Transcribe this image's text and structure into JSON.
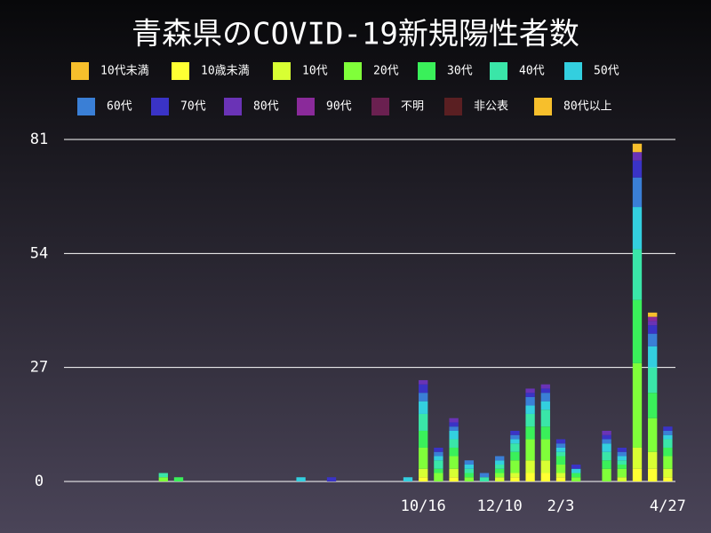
{
  "chart_data": {
    "type": "stacked_bar",
    "title": "青森県のCOVID-19新規陽性者数",
    "categories": [
      null,
      null,
      null,
      null,
      null,
      null,
      null,
      null,
      null,
      null,
      null,
      null,
      null,
      null,
      null,
      null,
      null,
      null,
      null,
      null,
      null,
      null,
      null,
      "10/16",
      null,
      null,
      null,
      null,
      "12/10",
      null,
      null,
      null,
      "2/3",
      null,
      null,
      null,
      null,
      null,
      null,
      "4/27"
    ],
    "ylim": [
      0,
      81
    ],
    "yticks": [
      0,
      27,
      54,
      81
    ],
    "grid": true,
    "series": [
      {
        "name": "10代未満",
        "color": "#f7bf2c",
        "values": [
          0,
          0,
          0,
          0,
          0,
          0,
          0,
          0,
          0,
          0,
          0,
          0,
          0,
          0,
          0,
          0,
          0,
          0,
          0,
          0,
          0,
          0,
          0,
          0,
          0,
          0,
          0,
          0,
          0,
          0,
          0,
          0,
          0,
          0,
          0,
          0,
          0,
          0,
          0,
          0
        ]
      },
      {
        "name": "10歳未満",
        "color": "#ffff33",
        "values": [
          0,
          0,
          0,
          0,
          0,
          0,
          0,
          0,
          0,
          0,
          0,
          0,
          0,
          0,
          0,
          0,
          0,
          0,
          0,
          0,
          0,
          0,
          0,
          1,
          0,
          1,
          0,
          0,
          0,
          1,
          2,
          2,
          1,
          0,
          0,
          0,
          0,
          3,
          3,
          1
        ]
      },
      {
        "name": "10代",
        "color": "#d8ff33",
        "values": [
          0,
          0,
          0,
          0,
          0,
          0,
          0,
          0,
          0,
          0,
          0,
          0,
          0,
          0,
          0,
          0,
          0,
          0,
          0,
          0,
          0,
          0,
          0,
          2,
          0,
          2,
          0,
          0,
          1,
          1,
          3,
          3,
          1,
          0,
          0,
          0,
          1,
          5,
          4,
          2
        ]
      },
      {
        "name": "20代",
        "color": "#80ff3a",
        "values": [
          0,
          0,
          0,
          0,
          0,
          0,
          1,
          0,
          0,
          0,
          0,
          0,
          0,
          0,
          0,
          0,
          0,
          0,
          0,
          0,
          0,
          0,
          0,
          5,
          2,
          3,
          1,
          0,
          1,
          3,
          5,
          5,
          2,
          1,
          0,
          3,
          2,
          20,
          8,
          3
        ]
      },
      {
        "name": "30代",
        "color": "#3af05a",
        "values": [
          0,
          0,
          0,
          0,
          0,
          0,
          0,
          1,
          0,
          0,
          0,
          0,
          0,
          0,
          0,
          0,
          0,
          0,
          0,
          0,
          0,
          0,
          0,
          4,
          1,
          2,
          1,
          0,
          1,
          2,
          3,
          3,
          2,
          1,
          0,
          2,
          1,
          15,
          6,
          2
        ]
      },
      {
        "name": "40代",
        "color": "#3ae6a8",
        "values": [
          0,
          0,
          0,
          0,
          0,
          0,
          1,
          0,
          0,
          0,
          0,
          0,
          0,
          0,
          0,
          0,
          0,
          0,
          0,
          0,
          0,
          0,
          0,
          4,
          2,
          2,
          1,
          1,
          1,
          2,
          3,
          4,
          1,
          0,
          0,
          2,
          1,
          12,
          6,
          2
        ]
      },
      {
        "name": "50代",
        "color": "#33cfdf",
        "values": [
          0,
          0,
          0,
          0,
          0,
          0,
          0,
          0,
          0,
          0,
          0,
          0,
          0,
          0,
          0,
          1,
          0,
          0,
          0,
          0,
          0,
          0,
          1,
          3,
          1,
          2,
          1,
          0,
          1,
          1,
          2,
          2,
          1,
          1,
          0,
          2,
          1,
          10,
          5,
          1
        ]
      },
      {
        "name": "60代",
        "color": "#3a7fd6",
        "values": [
          0,
          0,
          0,
          0,
          0,
          0,
          0,
          0,
          0,
          0,
          0,
          0,
          0,
          0,
          0,
          0,
          0,
          0,
          0,
          0,
          0,
          0,
          0,
          2,
          1,
          1,
          1,
          1,
          1,
          1,
          2,
          2,
          1,
          0,
          0,
          1,
          1,
          7,
          3,
          1
        ]
      },
      {
        "name": "70代",
        "color": "#3a33c6",
        "values": [
          0,
          0,
          0,
          0,
          0,
          0,
          0,
          0,
          0,
          0,
          0,
          0,
          0,
          0,
          0,
          0,
          0,
          1,
          0,
          0,
          0,
          0,
          0,
          2,
          1,
          1,
          0,
          0,
          0,
          1,
          1,
          1,
          1,
          1,
          0,
          1,
          1,
          4,
          2,
          1
        ]
      },
      {
        "name": "80代",
        "color": "#6a33b6",
        "values": [
          0,
          0,
          0,
          0,
          0,
          0,
          0,
          0,
          0,
          0,
          0,
          0,
          0,
          0,
          0,
          0,
          0,
          0,
          0,
          0,
          0,
          0,
          0,
          1,
          0,
          1,
          0,
          0,
          0,
          0,
          1,
          1,
          0,
          0,
          0,
          1,
          0,
          2,
          1,
          0
        ]
      },
      {
        "name": "90代",
        "color": "#8a2a9a",
        "values": [
          0,
          0,
          0,
          0,
          0,
          0,
          0,
          0,
          0,
          0,
          0,
          0,
          0,
          0,
          0,
          0,
          0,
          0,
          0,
          0,
          0,
          0,
          0,
          0,
          0,
          0,
          0,
          0,
          0,
          0,
          0,
          0,
          0,
          0,
          0,
          0,
          0,
          0,
          1,
          0
        ]
      },
      {
        "name": "不明",
        "color": "#6a2050",
        "values": [
          0,
          0,
          0,
          0,
          0,
          0,
          0,
          0,
          0,
          0,
          0,
          0,
          0,
          0,
          0,
          0,
          0,
          0,
          0,
          0,
          0,
          0,
          0,
          0,
          0,
          0,
          0,
          0,
          0,
          0,
          0,
          0,
          0,
          0,
          0,
          0,
          0,
          0,
          0,
          0
        ]
      },
      {
        "name": "非公表",
        "color": "#5a1f22",
        "values": [
          0,
          0,
          0,
          0,
          0,
          0,
          0,
          0,
          0,
          0,
          0,
          0,
          0,
          0,
          0,
          0,
          0,
          0,
          0,
          0,
          0,
          0,
          0,
          0,
          0,
          0,
          0,
          0,
          0,
          0,
          0,
          0,
          0,
          0,
          0,
          0,
          0,
          0,
          0,
          0
        ]
      },
      {
        "name": "80代以上",
        "color": "#f7bf2c",
        "values": [
          0,
          0,
          0,
          0,
          0,
          0,
          0,
          0,
          0,
          0,
          0,
          0,
          0,
          0,
          0,
          0,
          0,
          0,
          0,
          0,
          0,
          0,
          0,
          0,
          0,
          0,
          0,
          0,
          0,
          0,
          0,
          0,
          0,
          0,
          0,
          0,
          0,
          2,
          1,
          0
        ]
      }
    ]
  }
}
